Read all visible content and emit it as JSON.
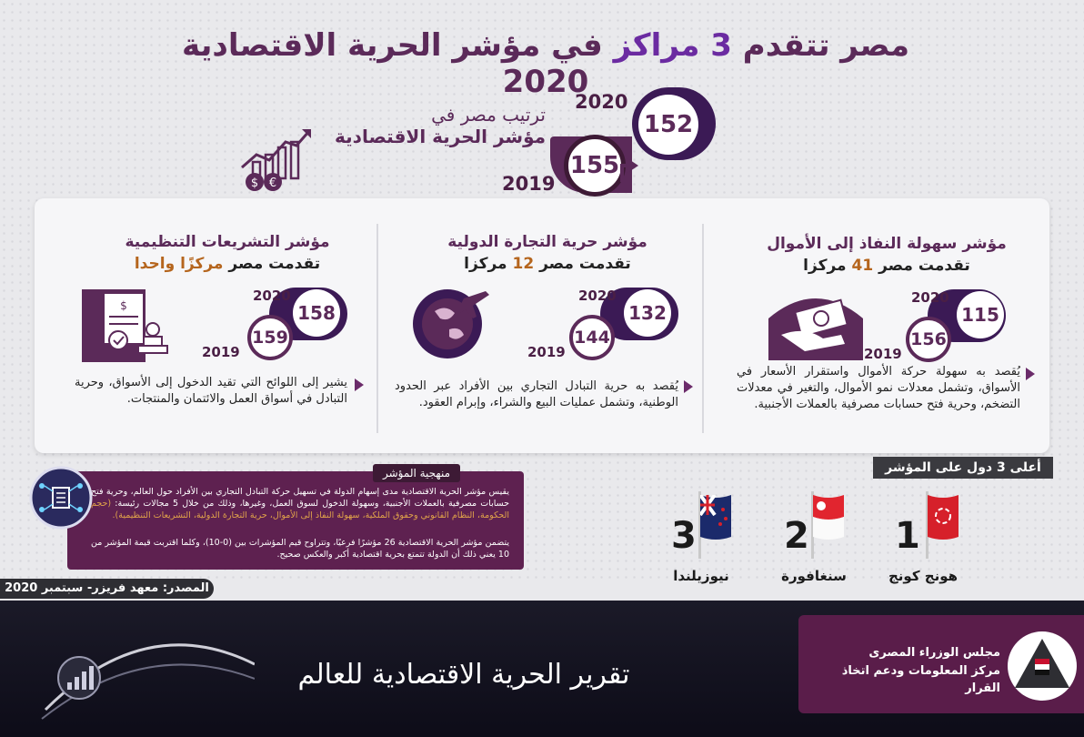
{
  "header": {
    "title_pre": "مصر تتقدم",
    "title_num": "3",
    "title_mid": "مراكز",
    "title_post": "في مؤشر الحرية الاقتصادية 2020"
  },
  "overall": {
    "label_line1": "ترتيب مصر في",
    "label_line2": "مؤشر الحرية الاقتصادية",
    "year_2020": "2020",
    "rank_2020": "152",
    "year_2019": "2019",
    "rank_2019": "155",
    "icon": "chart-money-icon"
  },
  "indicators": [
    {
      "title": "مؤشر سهولة النفاذ إلى الأموال",
      "sub_pre": "تقدمت مصر",
      "sub_num": "41",
      "sub_post": "مركزا",
      "year_2020": "2020",
      "rank_2020": "115",
      "year_2019": "2019",
      "rank_2019": "156",
      "description": "يُقصد به سهولة حركة الأموال واستقرار الأسعار في الأسواق، وتشمل معدلات نمو الأموال، والتغير في معدلات التضخم، وحرية فتح حسابات مصرفية بالعملات الأجنبية.",
      "icon": "money-hand-icon"
    },
    {
      "title": "مؤشر حرية التجارة الدولية",
      "sub_pre": "تقدمت مصر",
      "sub_num": "12",
      "sub_post": "مركزا",
      "year_2020": "2020",
      "rank_2020": "132",
      "year_2019": "2019",
      "rank_2019": "144",
      "description": "يُقصد به حرية التبادل التجاري بين الأفراد عبر الحدود الوطنية، وتشمل عمليات البيع والشراء، وإبرام العقود.",
      "icon": "globe-plane-icon"
    },
    {
      "title": "مؤشر التشريعات التنظيمية",
      "sub_pre": "تقدمت مصر",
      "sub_num": "مركزًا واحدا",
      "sub_post": "",
      "year_2020": "2020",
      "rank_2020": "158",
      "year_2019": "2019",
      "rank_2019": "159",
      "description": "يشير إلى اللوائح التي تقيد الدخول إلى الأسواق، وحرية التبادل في أسواق العمل والائتمان والمنتجات.",
      "icon": "document-stamp-icon"
    }
  ],
  "methodology": {
    "tab": "منهجية المؤشر",
    "para1_a": "يقيس مؤشر الحرية الاقتصادية مدى إسهام الدولة في تسهيل حركة التبادل التجاري بين الأفراد حول العالم، وحرية فتح حسابات مصرفية بالعملات الأجنبية، وسهولة الدخول لسوق العمل، وغيرها، وذلك من خلال 5 مجالات رئيسة:",
    "para1_b": "(حجم الحكومة، النظام القانوني وحقوق الملكية، سهولة النفاذ إلى الأموال، حرية التجارة الدولية، التشريعات التنظيمية).",
    "para2": "يتضمن مؤشر الحرية الاقتصادية 26 مؤشرًا فرعيًا، وتتراوح قيم المؤشرات بين (0-10)، وكلما اقتربت قيمة المؤشر من 10 يعني ذلك أن الدولة تتمتع بحرية اقتصادية أكبر والعكس صحيح.",
    "icon": "network-icon"
  },
  "top3": {
    "tab": "أعلى 3 دول على المؤشر",
    "countries": [
      {
        "rank": "1",
        "name": "هونج كونج",
        "flag": "hong-kong-flag-icon"
      },
      {
        "rank": "2",
        "name": "سنغافورة",
        "flag": "singapore-flag-icon"
      },
      {
        "rank": "3",
        "name": "نيوزيلندا",
        "flag": "new-zealand-flag-icon"
      }
    ]
  },
  "source": "المصدر: معهد فريزر- سبتمبر 2020",
  "footer": {
    "title": "تقرير الحرية الاقتصادية للعالم",
    "org_line1": "مجلس الوزراء المصرى",
    "org_line2": "مركز المعلومات ودعم اتخاذ القرار"
  },
  "colors": {
    "brand": "#5b2a59",
    "accent": "#6b2ba1",
    "highlight": "#b5651d"
  }
}
